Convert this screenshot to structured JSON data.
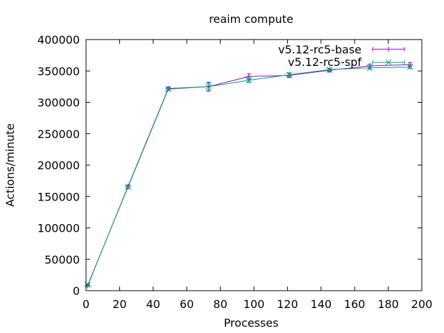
{
  "chart_data": {
    "type": "line",
    "title": "reaim compute",
    "xlabel": "Processes",
    "ylabel": "Actions/minute",
    "xlim": [
      0,
      200
    ],
    "ylim": [
      0,
      400000
    ],
    "xticks": [
      0,
      20,
      40,
      60,
      80,
      100,
      120,
      140,
      160,
      180,
      200
    ],
    "yticks": [
      0,
      50000,
      100000,
      150000,
      200000,
      250000,
      300000,
      350000,
      400000
    ],
    "xtick_labels": [
      "0",
      "20",
      "40",
      "60",
      "80",
      "100",
      "120",
      "140",
      "160",
      "180",
      "200"
    ],
    "ytick_labels": [
      "0",
      "50000",
      "100000",
      "150000",
      "200000",
      "250000",
      "300000",
      "350000",
      "400000"
    ],
    "grid": false,
    "legend_position": "top-right",
    "series": [
      {
        "name": "v5.12-rc5-base",
        "color": "#9400d3",
        "marker": "plus",
        "x": [
          1,
          25,
          49,
          73,
          97,
          121,
          145,
          169,
          193
        ],
        "y": [
          8000,
          166000,
          322000,
          325000,
          341000,
          343000,
          351000,
          358000,
          360000
        ],
        "err": [
          700,
          2000,
          2200,
          7000,
          4500,
          3500,
          2500,
          2500,
          3000
        ]
      },
      {
        "name": "v5.12-rc5-spf",
        "color": "#009e73",
        "marker": "x",
        "x": [
          1,
          25,
          49,
          73,
          97,
          121,
          145,
          169,
          193
        ],
        "y": [
          9000,
          165000,
          321000,
          325000,
          335000,
          344000,
          352000,
          355000,
          356000
        ],
        "err": [
          700,
          2000,
          2000,
          5500,
          3500,
          3000,
          2500,
          2500,
          2000
        ]
      }
    ]
  }
}
